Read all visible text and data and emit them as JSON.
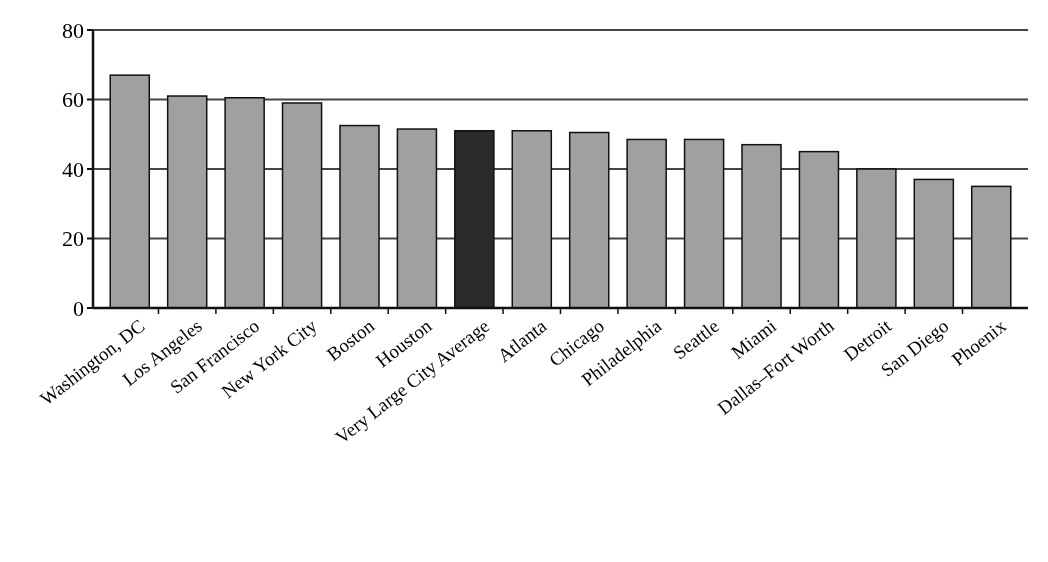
{
  "chart_data": {
    "type": "bar",
    "categories": [
      "Washington, DC",
      "Los Angeles",
      "San Francisco",
      "New York City",
      "Boston",
      "Houston",
      "Very Large City Average",
      "Atlanta",
      "Chicago",
      "Philadelphia",
      "Seattle",
      "Miami",
      "Dallas–Fort Worth",
      "Detroit",
      "San Diego",
      "Phoenix"
    ],
    "values": [
      67,
      61,
      60.5,
      59,
      52.5,
      51.5,
      51,
      51,
      50.5,
      48.5,
      48.5,
      47,
      45,
      40,
      37,
      35
    ],
    "colors": [
      "#a0a0a0",
      "#a0a0a0",
      "#a0a0a0",
      "#a0a0a0",
      "#a0a0a0",
      "#a0a0a0",
      "#2a2a2a",
      "#a0a0a0",
      "#a0a0a0",
      "#a0a0a0",
      "#a0a0a0",
      "#a0a0a0",
      "#a0a0a0",
      "#a0a0a0",
      "#a0a0a0",
      "#a0a0a0"
    ],
    "ylim": [
      0,
      80
    ],
    "yticks": [
      0,
      20,
      40,
      60,
      80
    ],
    "grid": "y"
  }
}
